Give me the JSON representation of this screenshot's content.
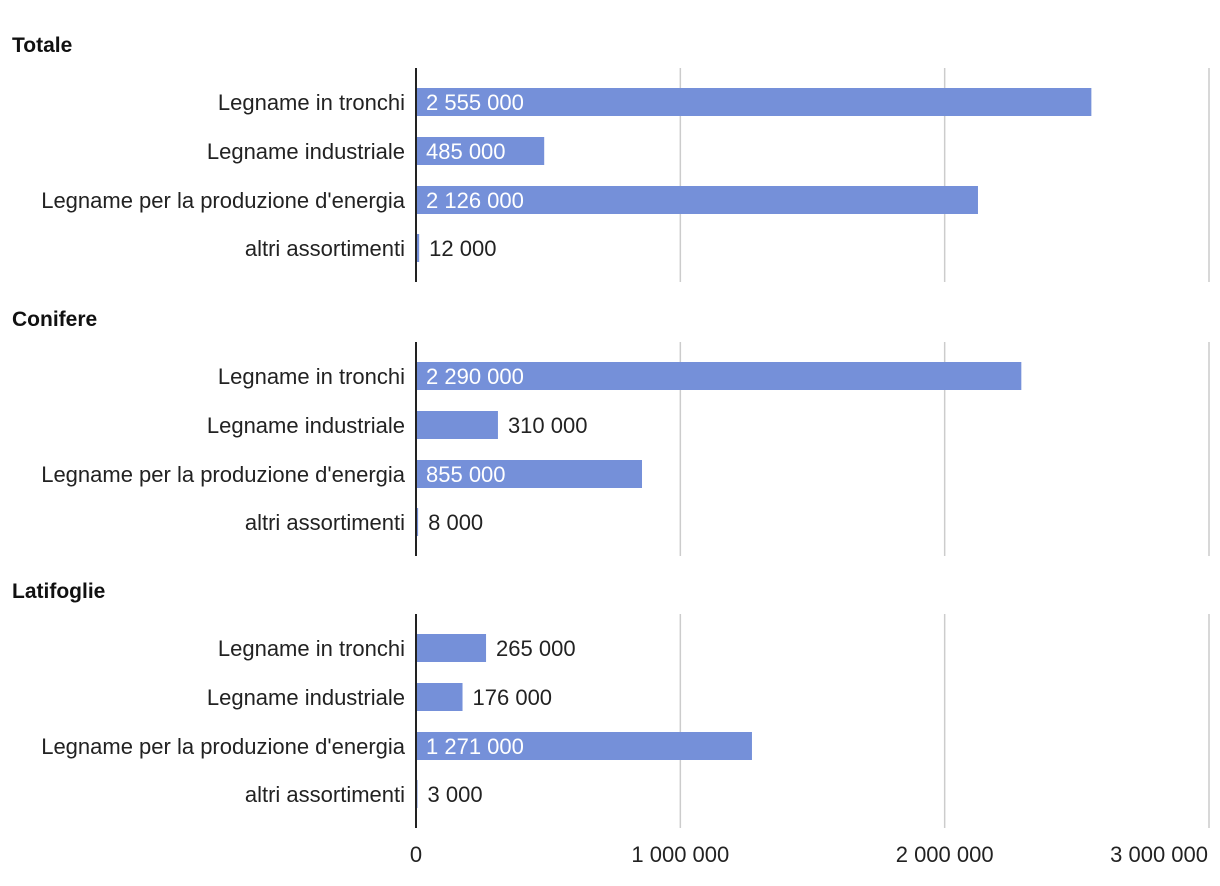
{
  "chart_data": {
    "type": "bar",
    "orientation": "horizontal",
    "bar_color": "#7590d9",
    "grid": true,
    "grid_color": "#cccccc",
    "axis_color": "#222222",
    "xlim": [
      0,
      3000000
    ],
    "x_ticks": [
      0,
      1000000,
      2000000,
      3000000
    ],
    "x_tick_labels": [
      "0",
      "1 000 000",
      "2 000 000",
      "3 000 000"
    ],
    "panels": [
      {
        "title": "Totale",
        "categories": [
          "Legname in tronchi",
          "Legname industriale",
          "Legname per la produzione d'energia",
          "altri assortimenti"
        ],
        "values": [
          2555000,
          485000,
          2126000,
          12000
        ],
        "value_labels": [
          "2 555 000",
          "485 000",
          "2 126 000",
          "12 000"
        ]
      },
      {
        "title": "Conifere",
        "categories": [
          "Legname in tronchi",
          "Legname industriale",
          "Legname per la produzione d'energia",
          "altri assortimenti"
        ],
        "values": [
          2290000,
          310000,
          855000,
          8000
        ],
        "value_labels": [
          "2 290 000",
          "310 000",
          "855 000",
          "8 000"
        ]
      },
      {
        "title": "Latifoglie",
        "categories": [
          "Legname in tronchi",
          "Legname industriale",
          "Legname per la produzione d'energia",
          "altri assortimenti"
        ],
        "values": [
          265000,
          176000,
          1271000,
          3000
        ],
        "value_labels": [
          "265 000",
          "176 000",
          "1 271 000",
          "3 000"
        ]
      }
    ]
  }
}
